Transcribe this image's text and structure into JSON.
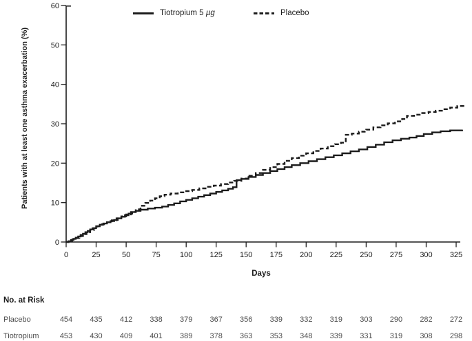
{
  "legend": {
    "items": [
      {
        "id": "tiotropium",
        "label": "Tiotropium 5",
        "unit": "µg",
        "style": "solid"
      },
      {
        "id": "placebo",
        "label": "Placebo",
        "unit": "",
        "style": "dashed"
      }
    ]
  },
  "chart_data": {
    "type": "line",
    "subtype": "kaplan-meier-step",
    "title": "",
    "xlabel": "Days",
    "ylabel": "Patients with at least one asthma exacerbation (%)",
    "xlim": [
      0,
      335
    ],
    "ylim": [
      0,
      60
    ],
    "x_ticks": [
      0,
      25,
      50,
      75,
      100,
      125,
      150,
      175,
      200,
      225,
      250,
      275,
      300,
      325
    ],
    "y_ticks": [
      0,
      10,
      20,
      30,
      40,
      50,
      60
    ],
    "grid": false,
    "legend_position": "top-center",
    "line_color": "#1c1c1c",
    "series": [
      {
        "name": "Tiotropium 5 µg",
        "style": "solid",
        "points": [
          [
            0,
            0
          ],
          [
            2,
            0.2
          ],
          [
            4,
            0.5
          ],
          [
            6,
            0.8
          ],
          [
            8,
            1.1
          ],
          [
            10,
            1.4
          ],
          [
            12,
            1.8
          ],
          [
            14,
            2.1
          ],
          [
            16,
            2.5
          ],
          [
            18,
            2.8
          ],
          [
            20,
            3.2
          ],
          [
            22,
            3.5
          ],
          [
            25,
            4.0
          ],
          [
            28,
            4.4
          ],
          [
            31,
            4.7
          ],
          [
            34,
            5.0
          ],
          [
            37,
            5.3
          ],
          [
            40,
            5.6
          ],
          [
            43,
            6.0
          ],
          [
            46,
            6.4
          ],
          [
            49,
            6.8
          ],
          [
            52,
            7.2
          ],
          [
            55,
            7.6
          ],
          [
            58,
            7.9
          ],
          [
            62,
            8.2
          ],
          [
            68,
            8.5
          ],
          [
            74,
            8.7
          ],
          [
            80,
            9.0
          ],
          [
            85,
            9.4
          ],
          [
            90,
            9.8
          ],
          [
            95,
            10.3
          ],
          [
            100,
            10.7
          ],
          [
            105,
            11.1
          ],
          [
            110,
            11.5
          ],
          [
            115,
            11.9
          ],
          [
            120,
            12.3
          ],
          [
            125,
            12.7
          ],
          [
            130,
            13.1
          ],
          [
            135,
            13.5
          ],
          [
            139,
            13.9
          ],
          [
            142,
            15.7
          ],
          [
            146,
            16.0
          ],
          [
            152,
            16.5
          ],
          [
            158,
            17.0
          ],
          [
            164,
            17.5
          ],
          [
            170,
            18.0
          ],
          [
            176,
            18.5
          ],
          [
            182,
            19.0
          ],
          [
            188,
            19.5
          ],
          [
            195,
            20.0
          ],
          [
            202,
            20.5
          ],
          [
            209,
            21.0
          ],
          [
            216,
            21.5
          ],
          [
            223,
            22.0
          ],
          [
            230,
            22.5
          ],
          [
            237,
            23.0
          ],
          [
            244,
            23.5
          ],
          [
            251,
            24.1
          ],
          [
            258,
            24.7
          ],
          [
            265,
            25.3
          ],
          [
            272,
            25.8
          ],
          [
            279,
            26.2
          ],
          [
            286,
            26.5
          ],
          [
            292,
            26.9
          ],
          [
            298,
            27.4
          ],
          [
            305,
            27.8
          ],
          [
            312,
            28.1
          ],
          [
            320,
            28.3
          ],
          [
            330,
            28.5
          ]
        ]
      },
      {
        "name": "Placebo",
        "style": "dashed",
        "points": [
          [
            0,
            0
          ],
          [
            2,
            0.2
          ],
          [
            5,
            0.6
          ],
          [
            8,
            1.0
          ],
          [
            11,
            1.5
          ],
          [
            14,
            2.0
          ],
          [
            17,
            2.5
          ],
          [
            20,
            3.0
          ],
          [
            23,
            3.5
          ],
          [
            26,
            4.0
          ],
          [
            30,
            4.5
          ],
          [
            34,
            5.0
          ],
          [
            38,
            5.5
          ],
          [
            42,
            6.0
          ],
          [
            46,
            6.5
          ],
          [
            50,
            7.0
          ],
          [
            54,
            7.6
          ],
          [
            58,
            8.3
          ],
          [
            62,
            9.2
          ],
          [
            66,
            9.9
          ],
          [
            70,
            10.5
          ],
          [
            74,
            11.1
          ],
          [
            78,
            11.6
          ],
          [
            82,
            12.0
          ],
          [
            87,
            12.3
          ],
          [
            93,
            12.6
          ],
          [
            99,
            12.9
          ],
          [
            105,
            13.2
          ],
          [
            111,
            13.6
          ],
          [
            117,
            14.0
          ],
          [
            123,
            14.3
          ],
          [
            129,
            14.7
          ],
          [
            135,
            15.1
          ],
          [
            140,
            15.5
          ],
          [
            146,
            16.1
          ],
          [
            152,
            16.8
          ],
          [
            158,
            17.5
          ],
          [
            164,
            18.3
          ],
          [
            170,
            19.0
          ],
          [
            176,
            19.8
          ],
          [
            182,
            20.6
          ],
          [
            188,
            21.3
          ],
          [
            194,
            21.9
          ],
          [
            200,
            22.5
          ],
          [
            206,
            23.1
          ],
          [
            212,
            23.7
          ],
          [
            218,
            24.3
          ],
          [
            224,
            24.8
          ],
          [
            229,
            25.2
          ],
          [
            233,
            27.2
          ],
          [
            238,
            27.5
          ],
          [
            244,
            28.0
          ],
          [
            250,
            28.5
          ],
          [
            256,
            29.1
          ],
          [
            262,
            29.6
          ],
          [
            268,
            30.1
          ],
          [
            274,
            30.6
          ],
          [
            280,
            31.2
          ],
          [
            284,
            32.0
          ],
          [
            290,
            32.3
          ],
          [
            296,
            32.7
          ],
          [
            302,
            33.0
          ],
          [
            308,
            33.3
          ],
          [
            314,
            33.7
          ],
          [
            320,
            34.1
          ],
          [
            326,
            34.5
          ],
          [
            332,
            34.8
          ]
        ]
      }
    ]
  },
  "risk_table": {
    "title": "No. at Risk",
    "days": [
      0,
      25,
      50,
      75,
      100,
      125,
      150,
      175,
      200,
      225,
      250,
      275,
      300,
      325
    ],
    "rows": [
      {
        "label": "Placebo",
        "values": [
          454,
          435,
          412,
          338,
          379,
          367,
          356,
          339,
          332,
          319,
          303,
          290,
          282,
          272
        ]
      },
      {
        "label": "Tiotropium",
        "values": [
          453,
          430,
          409,
          401,
          389,
          378,
          363,
          353,
          348,
          339,
          331,
          319,
          308,
          298
        ]
      }
    ]
  },
  "colors": {
    "axis": "#1c1c1c",
    "tick_text": "#1c1c1c",
    "table_text": "#4d4d4d"
  }
}
